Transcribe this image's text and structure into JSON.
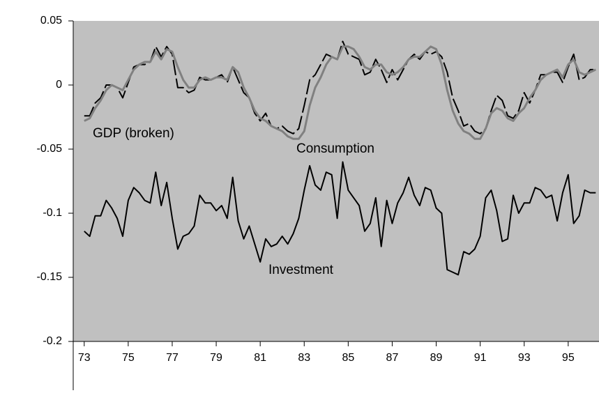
{
  "chart_data": {
    "type": "line",
    "x": [
      73,
      73.25,
      73.5,
      73.75,
      74,
      74.25,
      74.5,
      74.75,
      75,
      75.25,
      75.5,
      75.75,
      76,
      76.25,
      76.5,
      76.75,
      77,
      77.25,
      77.5,
      77.75,
      78,
      78.25,
      78.5,
      78.75,
      79,
      79.25,
      79.5,
      79.75,
      80,
      80.25,
      80.5,
      80.75,
      81,
      81.25,
      81.5,
      81.75,
      82,
      82.25,
      82.5,
      82.75,
      83,
      83.25,
      83.5,
      83.75,
      84,
      84.25,
      84.5,
      84.75,
      85,
      85.25,
      85.5,
      85.75,
      86,
      86.25,
      86.5,
      86.75,
      87,
      87.25,
      87.5,
      87.75,
      88,
      88.25,
      88.5,
      88.75,
      89,
      89.25,
      89.5,
      89.75,
      90,
      90.25,
      90.5,
      90.75,
      91,
      91.25,
      91.5,
      91.75,
      92,
      92.25,
      92.5,
      92.75,
      93,
      93.25,
      93.5,
      93.75,
      94,
      94.25,
      94.5,
      94.75,
      95,
      95.25,
      95.5,
      95.75,
      96,
      96.25
    ],
    "series": [
      {
        "name": "GDP (broken)",
        "color": "#000000",
        "style": "dashed",
        "values": [
          -0.024,
          -0.024,
          -0.014,
          -0.01,
          0,
          0,
          -0.002,
          -0.01,
          0.002,
          0.014,
          0.016,
          0.016,
          0.018,
          0.03,
          0.022,
          0.03,
          0.024,
          -0.002,
          -0.002,
          -0.006,
          -0.004,
          0.006,
          0.004,
          0.004,
          0.006,
          0.008,
          0.002,
          0.014,
          0.004,
          -0.006,
          -0.01,
          -0.022,
          -0.028,
          -0.022,
          -0.032,
          -0.034,
          -0.032,
          -0.036,
          -0.038,
          -0.034,
          -0.016,
          0.004,
          0.008,
          0.016,
          0.024,
          0.022,
          0.02,
          0.034,
          0.024,
          0.022,
          0.02,
          0.008,
          0.01,
          0.02,
          0.012,
          0.002,
          0.012,
          0.004,
          0.012,
          0.02,
          0.024,
          0.02,
          0.026,
          0.024,
          0.026,
          0.022,
          0.01,
          -0.01,
          -0.02,
          -0.032,
          -0.03,
          -0.036,
          -0.038,
          -0.034,
          -0.02,
          -0.008,
          -0.012,
          -0.024,
          -0.026,
          -0.02,
          -0.006,
          -0.014,
          -0.004,
          0.008,
          0.008,
          0.01,
          0.01,
          0.002,
          0.014,
          0.024,
          0.004,
          0.006,
          0.012,
          0.012
        ]
      },
      {
        "name": "Consumption",
        "color": "#808080",
        "style": "solid",
        "values": [
          -0.028,
          -0.026,
          -0.018,
          -0.012,
          -0.004,
          0,
          -0.002,
          -0.004,
          0.004,
          0.012,
          0.016,
          0.018,
          0.018,
          0.026,
          0.02,
          0.028,
          0.026,
          0.014,
          0.004,
          -0.002,
          -0.002,
          0.004,
          0.006,
          0.004,
          0.006,
          0.006,
          0.004,
          0.014,
          0.01,
          -0.002,
          -0.01,
          -0.02,
          -0.026,
          -0.028,
          -0.032,
          -0.034,
          -0.036,
          -0.04,
          -0.042,
          -0.042,
          -0.036,
          -0.016,
          -0.002,
          0.006,
          0.016,
          0.022,
          0.02,
          0.03,
          0.03,
          0.028,
          0.022,
          0.014,
          0.012,
          0.016,
          0.016,
          0.01,
          0.008,
          0.01,
          0.014,
          0.02,
          0.022,
          0.022,
          0.026,
          0.03,
          0.028,
          0.016,
          -0.004,
          -0.02,
          -0.03,
          -0.036,
          -0.038,
          -0.042,
          -0.042,
          -0.034,
          -0.022,
          -0.018,
          -0.02,
          -0.026,
          -0.028,
          -0.022,
          -0.018,
          -0.01,
          -0.004,
          0.004,
          0.008,
          0.01,
          0.012,
          0.006,
          0.016,
          0.02,
          0.01,
          0.008,
          0.01,
          0.012
        ]
      },
      {
        "name": "Investment",
        "color": "#000000",
        "style": "solid",
        "values": [
          -0.114,
          -0.118,
          -0.102,
          -0.102,
          -0.09,
          -0.096,
          -0.104,
          -0.118,
          -0.09,
          -0.08,
          -0.084,
          -0.09,
          -0.092,
          -0.068,
          -0.094,
          -0.076,
          -0.104,
          -0.128,
          -0.118,
          -0.116,
          -0.11,
          -0.086,
          -0.092,
          -0.092,
          -0.098,
          -0.094,
          -0.104,
          -0.072,
          -0.106,
          -0.12,
          -0.11,
          -0.124,
          -0.138,
          -0.12,
          -0.126,
          -0.124,
          -0.118,
          -0.124,
          -0.116,
          -0.104,
          -0.082,
          -0.063,
          -0.078,
          -0.082,
          -0.068,
          -0.07,
          -0.104,
          -0.06,
          -0.082,
          -0.088,
          -0.094,
          -0.114,
          -0.108,
          -0.088,
          -0.126,
          -0.09,
          -0.108,
          -0.092,
          -0.084,
          -0.072,
          -0.086,
          -0.094,
          -0.08,
          -0.082,
          -0.096,
          -0.1,
          -0.144,
          -0.146,
          -0.148,
          -0.13,
          -0.132,
          -0.128,
          -0.118,
          -0.088,
          -0.082,
          -0.098,
          -0.122,
          -0.12,
          -0.086,
          -0.1,
          -0.092,
          -0.092,
          -0.08,
          -0.082,
          -0.088,
          -0.086,
          -0.106,
          -0.084,
          -0.07,
          -0.108,
          -0.102,
          -0.082,
          -0.084,
          -0.084
        ]
      }
    ],
    "xlim": [
      72.5,
      96.4
    ],
    "xticks": [
      73,
      75,
      77,
      79,
      81,
      83,
      85,
      87,
      89,
      91,
      93,
      95
    ],
    "ylim": [
      -0.2,
      0.05
    ],
    "yticks": [
      {
        "value": -0.2,
        "label": "-0.2"
      },
      -0.15,
      {
        "value": -0.1,
        "label": "-0.1"
      },
      -0.05,
      0,
      0.05
    ],
    "background": "#c0c0c0"
  }
}
